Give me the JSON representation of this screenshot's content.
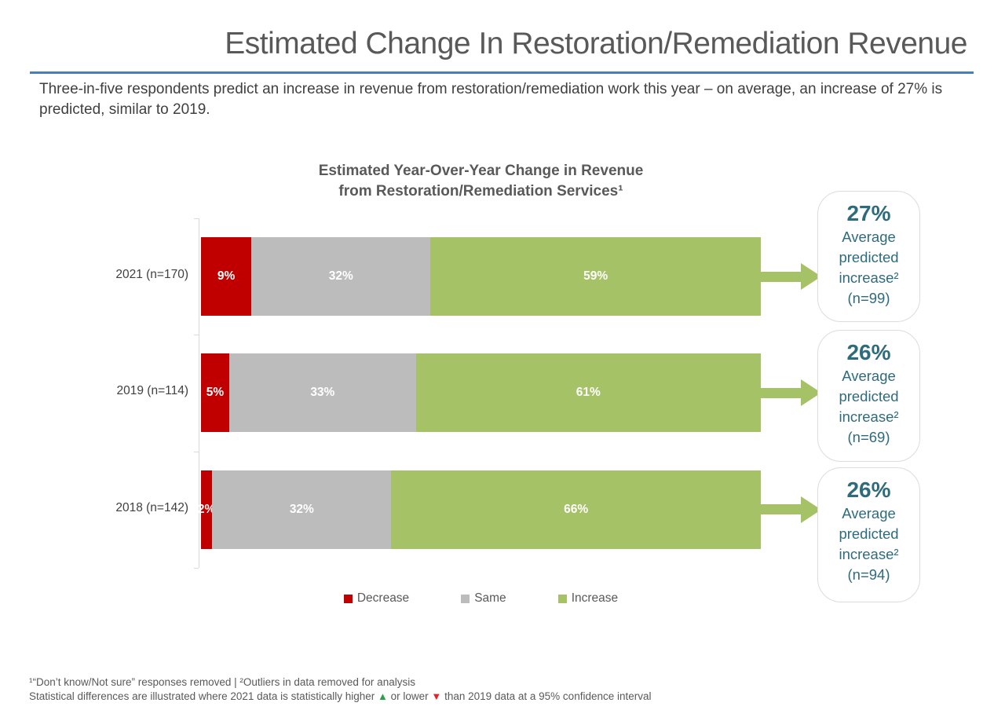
{
  "slide": {
    "title": "Estimated Change In Restoration/Remediation Revenue",
    "lead_text": "Three-in-five respondents predict an increase in revenue from restoration/remediation work this year – on average, an increase of 27% is predicted, similar to 2019.",
    "accent_rule_color": "#4a7ebb",
    "title_color": "#595959"
  },
  "chart_data": {
    "type": "bar",
    "orientation": "horizontal",
    "stacked": true,
    "title": "Estimated Year-Over-Year Change in Revenue from Restoration/Remediation Services¹",
    "title_lines": [
      "Estimated Year-Over-Year Change in Revenue",
      "from Restoration/Remediation Services¹"
    ],
    "categories": [
      "2021 (n=170)",
      "2019 (n=114)",
      "2018 (n=142)"
    ],
    "series": [
      {
        "name": "Decrease",
        "color": "#c00000",
        "values": [
          9,
          5,
          2
        ]
      },
      {
        "name": "Same",
        "color": "#bcbcbc",
        "values": [
          32,
          33,
          32
        ]
      },
      {
        "name": "Increase",
        "color": "#a5c266",
        "values": [
          59,
          61,
          66
        ]
      }
    ],
    "value_suffix": "%",
    "xlim": [
      0,
      100
    ],
    "grid": false,
    "legend_position": "bottom",
    "callout_text_color": "#2e6b7d",
    "callouts": [
      {
        "value": "27%",
        "label": "Average predicted increase²",
        "n": "(n=99)"
      },
      {
        "value": "26%",
        "label": "Average predicted increase²",
        "n": "(n=69)"
      },
      {
        "value": "26%",
        "label": "Average predicted increase²",
        "n": "(n=94)"
      }
    ]
  },
  "footnotes": {
    "line1": "¹“Don’t know/Not sure” responses removed | ²Outliers in data removed for analysis",
    "line2_parts": {
      "before_up": "Statistical differences are illustrated where 2021 data is statistically higher",
      "up_triangle": "▲",
      "between": "or lower",
      "down_triangle": "▼",
      "after_down": "than 2019 data at a 95% confidence interval"
    },
    "up_color": "#2ba04a",
    "down_color": "#e32227"
  }
}
